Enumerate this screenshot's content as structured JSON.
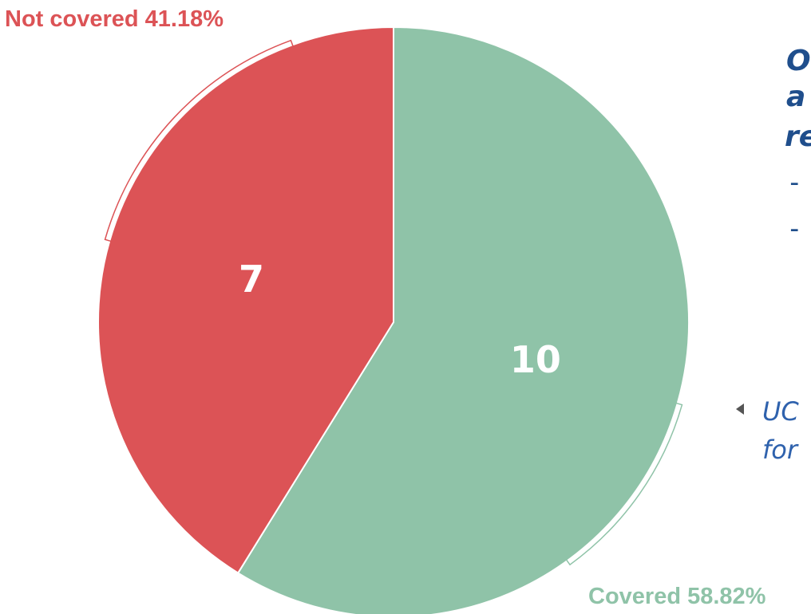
{
  "chart_data": {
    "type": "pie",
    "categories": [
      "Covered",
      "Not covered"
    ],
    "values": [
      10,
      7
    ],
    "percent_labels": [
      "58.82%",
      "41.18%"
    ],
    "colors": [
      "#8fc3a8",
      "#dc5356"
    ],
    "annotations": [
      "O",
      "a",
      "re",
      "-",
      "-",
      "UC",
      "for"
    ]
  }
}
